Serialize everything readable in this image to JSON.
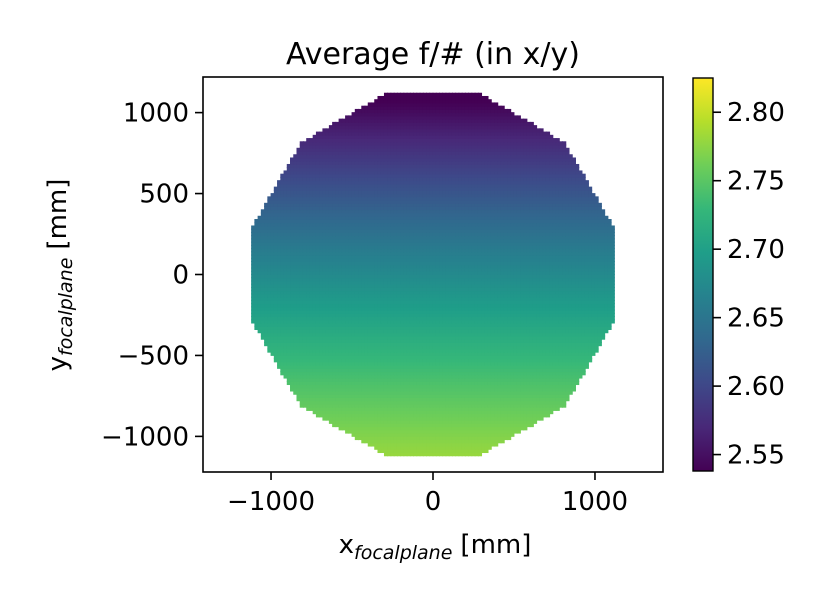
{
  "chart_data": {
    "type": "scatter",
    "title": "Average f/# (in x/y)",
    "xlabel": {
      "main": "x",
      "subscript": "focalplane",
      "unit": "[mm]"
    },
    "ylabel": {
      "main": "y",
      "subscript": "focalplane",
      "unit": "[mm]"
    },
    "xlim": [
      -1420,
      1420
    ],
    "ylim": [
      -1220,
      1220
    ],
    "xticks": [
      {
        "value": -1000,
        "label": "−1000"
      },
      {
        "value": 0,
        "label": "0"
      },
      {
        "value": 1000,
        "label": "1000"
      }
    ],
    "yticks": [
      {
        "value": 1000,
        "label": "1000"
      },
      {
        "value": 500,
        "label": "500"
      },
      {
        "value": 0,
        "label": "0"
      },
      {
        "value": -500,
        "label": "−500"
      },
      {
        "value": -1000,
        "label": "−1000"
      }
    ],
    "grid": false,
    "field": {
      "shape": "dodecagon",
      "circumradius": 1150,
      "grid_spacing": 20,
      "value_model": "f/# varies with y: ~2.54 at y=+1120 to ~2.82 at y=-1120"
    },
    "colorbar": {
      "colormap": "viridis",
      "range": [
        2.538,
        2.825
      ],
      "ticks": [
        {
          "value": 2.55,
          "label": "2.55"
        },
        {
          "value": 2.6,
          "label": "2.60"
        },
        {
          "value": 2.65,
          "label": "2.65"
        },
        {
          "value": 2.7,
          "label": "2.70"
        },
        {
          "value": 2.75,
          "label": "2.75"
        },
        {
          "value": 2.8,
          "label": "2.80"
        }
      ]
    },
    "colors": {
      "viridis_stops": [
        "#440154",
        "#482878",
        "#3e4989",
        "#31688e",
        "#26828e",
        "#1f9e89",
        "#35b779",
        "#6ece58",
        "#b5de2b",
        "#fde725"
      ]
    }
  }
}
